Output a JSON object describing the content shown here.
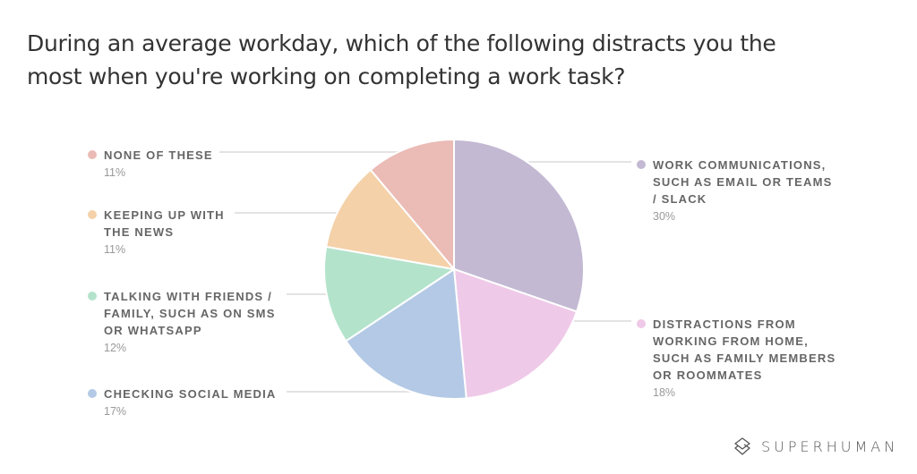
{
  "title": "During an average workday, which of the following distracts you the most when you're working on completing a work task?",
  "brand": {
    "name": "SUPERHUMAN",
    "icon": "superhuman-logo-icon"
  },
  "chart_data": {
    "type": "pie",
    "title": "During an average workday, which of the following distracts you the most when you're working on completing a work task?",
    "start_angle": "12 o'clock",
    "direction": "clockwise",
    "slices": [
      {
        "label": "Work communications, such as email or Teams / Slack",
        "value": 30,
        "pct_label": "30%",
        "color": "#c3b9d3"
      },
      {
        "label": "Distractions from working from home, such as family members or roommates",
        "value": 18,
        "pct_label": "18%",
        "color": "#efc9e8"
      },
      {
        "label": "Checking social media",
        "value": 17,
        "pct_label": "17%",
        "color": "#b4c9e5"
      },
      {
        "label": "Talking with friends / family, such as on SMS or WhatsApp",
        "value": 12,
        "pct_label": "12%",
        "color": "#b4e3cc"
      },
      {
        "label": "Keeping up with the news",
        "value": 11,
        "pct_label": "11%",
        "color": "#f4d1a9"
      },
      {
        "label": "None of these",
        "value": 11,
        "pct_label": "11%",
        "color": "#ebbbb6"
      }
    ],
    "legend_position": "sides"
  },
  "legend": {
    "none": {
      "label": "NONE OF THESE",
      "pct": "11%"
    },
    "news": {
      "label_1": "KEEPING UP WITH",
      "label_2": "THE NEWS",
      "pct": "11%"
    },
    "friends": {
      "label_1": "TALKING WITH FRIENDS /",
      "label_2": "FAMILY, SUCH AS ON SMS",
      "label_3": "OR WHATSAPP",
      "pct": "12%"
    },
    "social": {
      "label": "CHECKING SOCIAL MEDIA",
      "pct": "17%"
    },
    "work": {
      "label_1": "WORK COMMUNICATIONS,",
      "label_2": "SUCH AS EMAIL OR TEAMS",
      "label_3": "/ SLACK",
      "pct": "30%"
    },
    "home": {
      "label_1": "DISTRACTIONS FROM",
      "label_2": "WORKING FROM HOME,",
      "label_3": "SUCH AS FAMILY MEMBERS",
      "label_4": "OR ROOMMATES",
      "pct": "18%"
    }
  }
}
